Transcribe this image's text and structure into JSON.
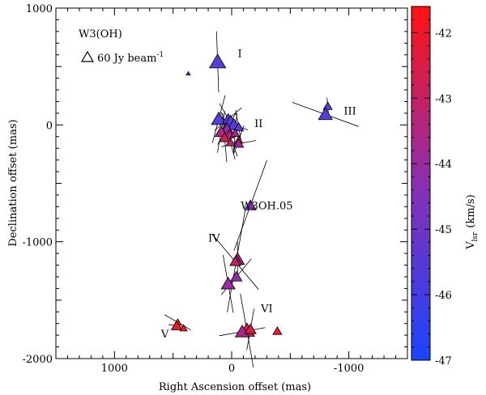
{
  "chart_data": {
    "type": "scatter",
    "title": "W3(OH)",
    "xlabel": "Right Ascension offset (mas)",
    "ylabel": "Declination offset (mas)",
    "xlim": [
      1500,
      -1500
    ],
    "ylim": [
      -2000,
      1000
    ],
    "x_ticks": [
      1000,
      0,
      -1000
    ],
    "y_ticks": [
      1000,
      0,
      -1000,
      -2000
    ],
    "legend": {
      "symbol": "triangle",
      "text": "60 Jy beam",
      "superscript": "-1"
    },
    "colorbar": {
      "label": "V",
      "label_sub": "lsr",
      "label_unit": "(km/s)",
      "range": [
        -47.0,
        -41.6
      ],
      "ticks": [
        -42,
        -43,
        -44,
        -45,
        -46,
        -47
      ],
      "low_color": "#2a4bff",
      "high_color": "#ff1515"
    },
    "annotations": [
      {
        "text": "I",
        "x": -70,
        "y": 580
      },
      {
        "text": "II",
        "x": -230,
        "y": -20
      },
      {
        "text": "III",
        "x": -1010,
        "y": 90
      },
      {
        "text": "W3OH.05",
        "x": -300,
        "y": -720
      },
      {
        "text": "IV",
        "x": 150,
        "y": -1000
      },
      {
        "text": "V",
        "x": 570,
        "y": -1820
      },
      {
        "text": "VI",
        "x": -300,
        "y": -1600
      }
    ],
    "points": [
      {
        "x": 120,
        "y": 540,
        "v": -45.6,
        "s": 1.0,
        "pa": 88,
        "len": 520
      },
      {
        "x": 370,
        "y": 440,
        "v": -45.8,
        "s": 0.25
      },
      {
        "x": 110,
        "y": 50,
        "v": -45.8,
        "s": 0.9,
        "pa": 105,
        "len": 420
      },
      {
        "x": 30,
        "y": 50,
        "v": -45.5,
        "s": 0.7,
        "pa": 140,
        "len": 300
      },
      {
        "x": 10,
        "y": 20,
        "v": -45.6,
        "s": 0.95,
        "pa": 60,
        "len": 380
      },
      {
        "x": -20,
        "y": 0,
        "v": -45.7,
        "s": 0.8,
        "pa": 20,
        "len": 250
      },
      {
        "x": -60,
        "y": -20,
        "v": -45.4,
        "s": 0.6,
        "pa": 80,
        "len": 300
      },
      {
        "x": 40,
        "y": -30,
        "v": -44.2,
        "s": 0.7,
        "pa": 120,
        "len": 320
      },
      {
        "x": 90,
        "y": -60,
        "v": -43.5,
        "s": 0.75,
        "pa": 100,
        "len": 360
      },
      {
        "x": 20,
        "y": -80,
        "v": -43.0,
        "s": 0.6,
        "pa": 70,
        "len": 400
      },
      {
        "x": -30,
        "y": -70,
        "v": -43.8,
        "s": 0.55,
        "pa": 95,
        "len": 340
      },
      {
        "x": 60,
        "y": -110,
        "v": -42.8,
        "s": 0.65,
        "pa": 85,
        "len": 420
      },
      {
        "x": 10,
        "y": -150,
        "v": -43.2,
        "s": 0.55,
        "pa": 75,
        "len": 300
      },
      {
        "x": -60,
        "y": -130,
        "v": -42.5,
        "s": 0.5,
        "pa": 110,
        "len": 260
      },
      {
        "x": -60,
        "y": -160,
        "v": -43.9,
        "s": 0.6,
        "pa": 170,
        "len": 300
      },
      {
        "x": -820,
        "y": 160,
        "v": -45.9,
        "s": 0.55,
        "pa": 85,
        "len": 150
      },
      {
        "x": -800,
        "y": 90,
        "v": -45.6,
        "s": 0.85,
        "pa": 20,
        "len": 600
      },
      {
        "x": -160,
        "y": -690,
        "v": -44.6,
        "s": 0.7,
        "pa": 110,
        "len": 820
      },
      {
        "x": -50,
        "y": -1150,
        "v": -43.3,
        "s": 0.85,
        "pa": 90,
        "len": 300
      },
      {
        "x": -40,
        "y": -1160,
        "v": -43.9,
        "s": 0.7,
        "pa": 100,
        "len": 900
      },
      {
        "x": -30,
        "y": -1170,
        "v": -42.9,
        "s": 0.65,
        "pa": 50,
        "len": 620
      },
      {
        "x": -40,
        "y": -1300,
        "v": -44.2,
        "s": 0.7,
        "pa": 130,
        "len": 400
      },
      {
        "x": 30,
        "y": -1360,
        "v": -44.0,
        "s": 0.85,
        "pa": 80,
        "len": 500
      },
      {
        "x": -130,
        "y": -1760,
        "v": -42.8,
        "s": 0.95,
        "pa": 80,
        "len": 640
      },
      {
        "x": -90,
        "y": -1770,
        "v": -43.6,
        "s": 0.85,
        "pa": 170,
        "len": 400
      },
      {
        "x": -160,
        "y": -1750,
        "v": -42.4,
        "s": 0.7,
        "pa": 100,
        "len": 360
      },
      {
        "x": -390,
        "y": -1765,
        "v": -41.9,
        "s": 0.55
      },
      {
        "x": 460,
        "y": -1690,
        "v": -41.8,
        "s": 0.45,
        "pa": 30,
        "len": 260
      },
      {
        "x": 470,
        "y": -1720,
        "v": -42.0,
        "s": 0.65,
        "pa": 10,
        "len": 140
      },
      {
        "x": 410,
        "y": -1740,
        "v": -41.8,
        "s": 0.45
      }
    ]
  }
}
